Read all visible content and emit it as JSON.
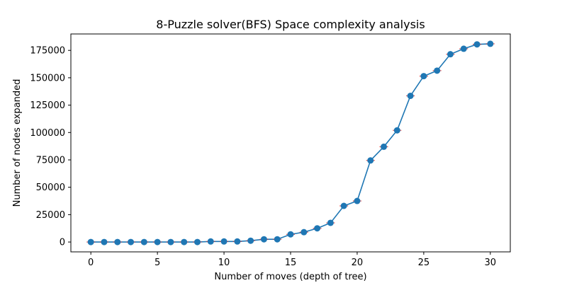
{
  "chart_data": {
    "type": "line",
    "title": "8-Puzzle solver(BFS) Space complexity analysis",
    "xlabel": "Number of moves (depth of tree)",
    "ylabel": "Number of nodes expanded",
    "xlim": [
      -1.5,
      31.5
    ],
    "ylim": [
      -9000,
      190000
    ],
    "xticks": [
      0,
      5,
      10,
      15,
      20,
      25,
      30
    ],
    "yticks": [
      0,
      25000,
      50000,
      75000,
      100000,
      125000,
      150000,
      175000
    ],
    "grid": false,
    "legend": "none",
    "line_color": "#1f77b4",
    "marker_color": "#1f77b4",
    "error_color": "#d62728",
    "series": [
      {
        "x": [
          0,
          1,
          2,
          3,
          4,
          5,
          6,
          7,
          8,
          9,
          10,
          11,
          12,
          13,
          14,
          15,
          16,
          17,
          18,
          19,
          20,
          21,
          22,
          23,
          24,
          25,
          26,
          27,
          28,
          29,
          30
        ],
        "values": [
          0,
          0,
          0,
          0,
          0,
          0,
          0,
          0,
          0,
          500,
          500,
          500,
          1200,
          2500,
          2500,
          7000,
          9000,
          12500,
          17500,
          33000,
          37500,
          74500,
          87000,
          102000,
          133500,
          151500,
          156500,
          171500,
          176500,
          180500,
          181000
        ]
      }
    ]
  }
}
